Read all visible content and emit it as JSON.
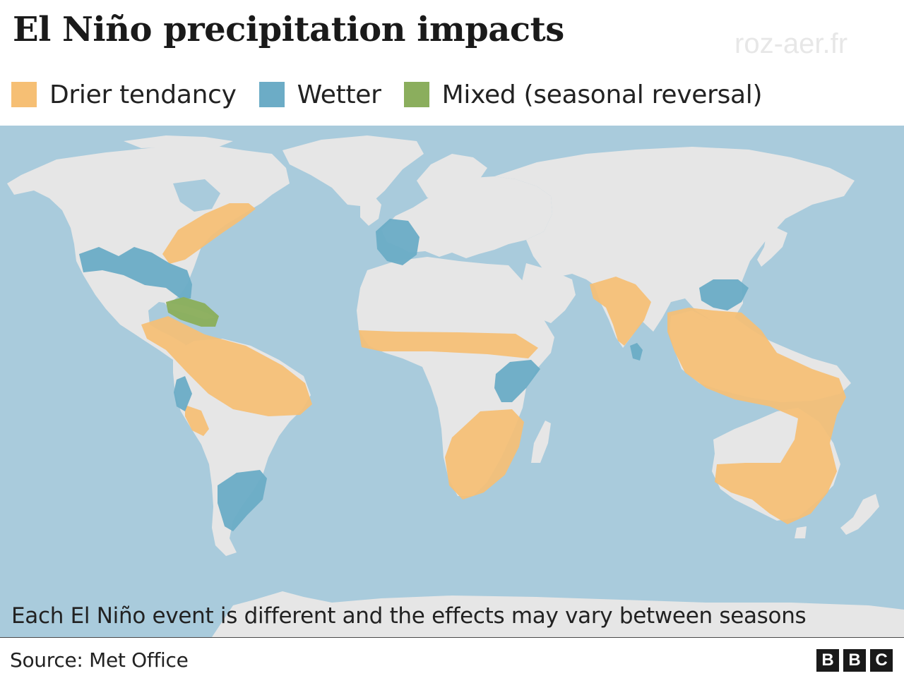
{
  "title": "El Niño precipitation impacts",
  "legend": [
    {
      "label": "Drier tendancy",
      "color": "#f6bf74"
    },
    {
      "label": "Wetter",
      "color": "#6cacc6"
    },
    {
      "label": "Mixed (seasonal reversal)",
      "color": "#8bae5d"
    }
  ],
  "caption": "Each El Niño event is different and the effects may vary between seasons",
  "source": "Source: Met Office",
  "logo": {
    "letters": [
      "B",
      "B",
      "C"
    ]
  },
  "watermark": "roz-aer.fr",
  "colors": {
    "ocean": "#a9cbdc",
    "land": "#e6e6e6",
    "drier": "#f6bf74",
    "wetter": "#6cacc6",
    "mixed": "#8bae5d"
  }
}
